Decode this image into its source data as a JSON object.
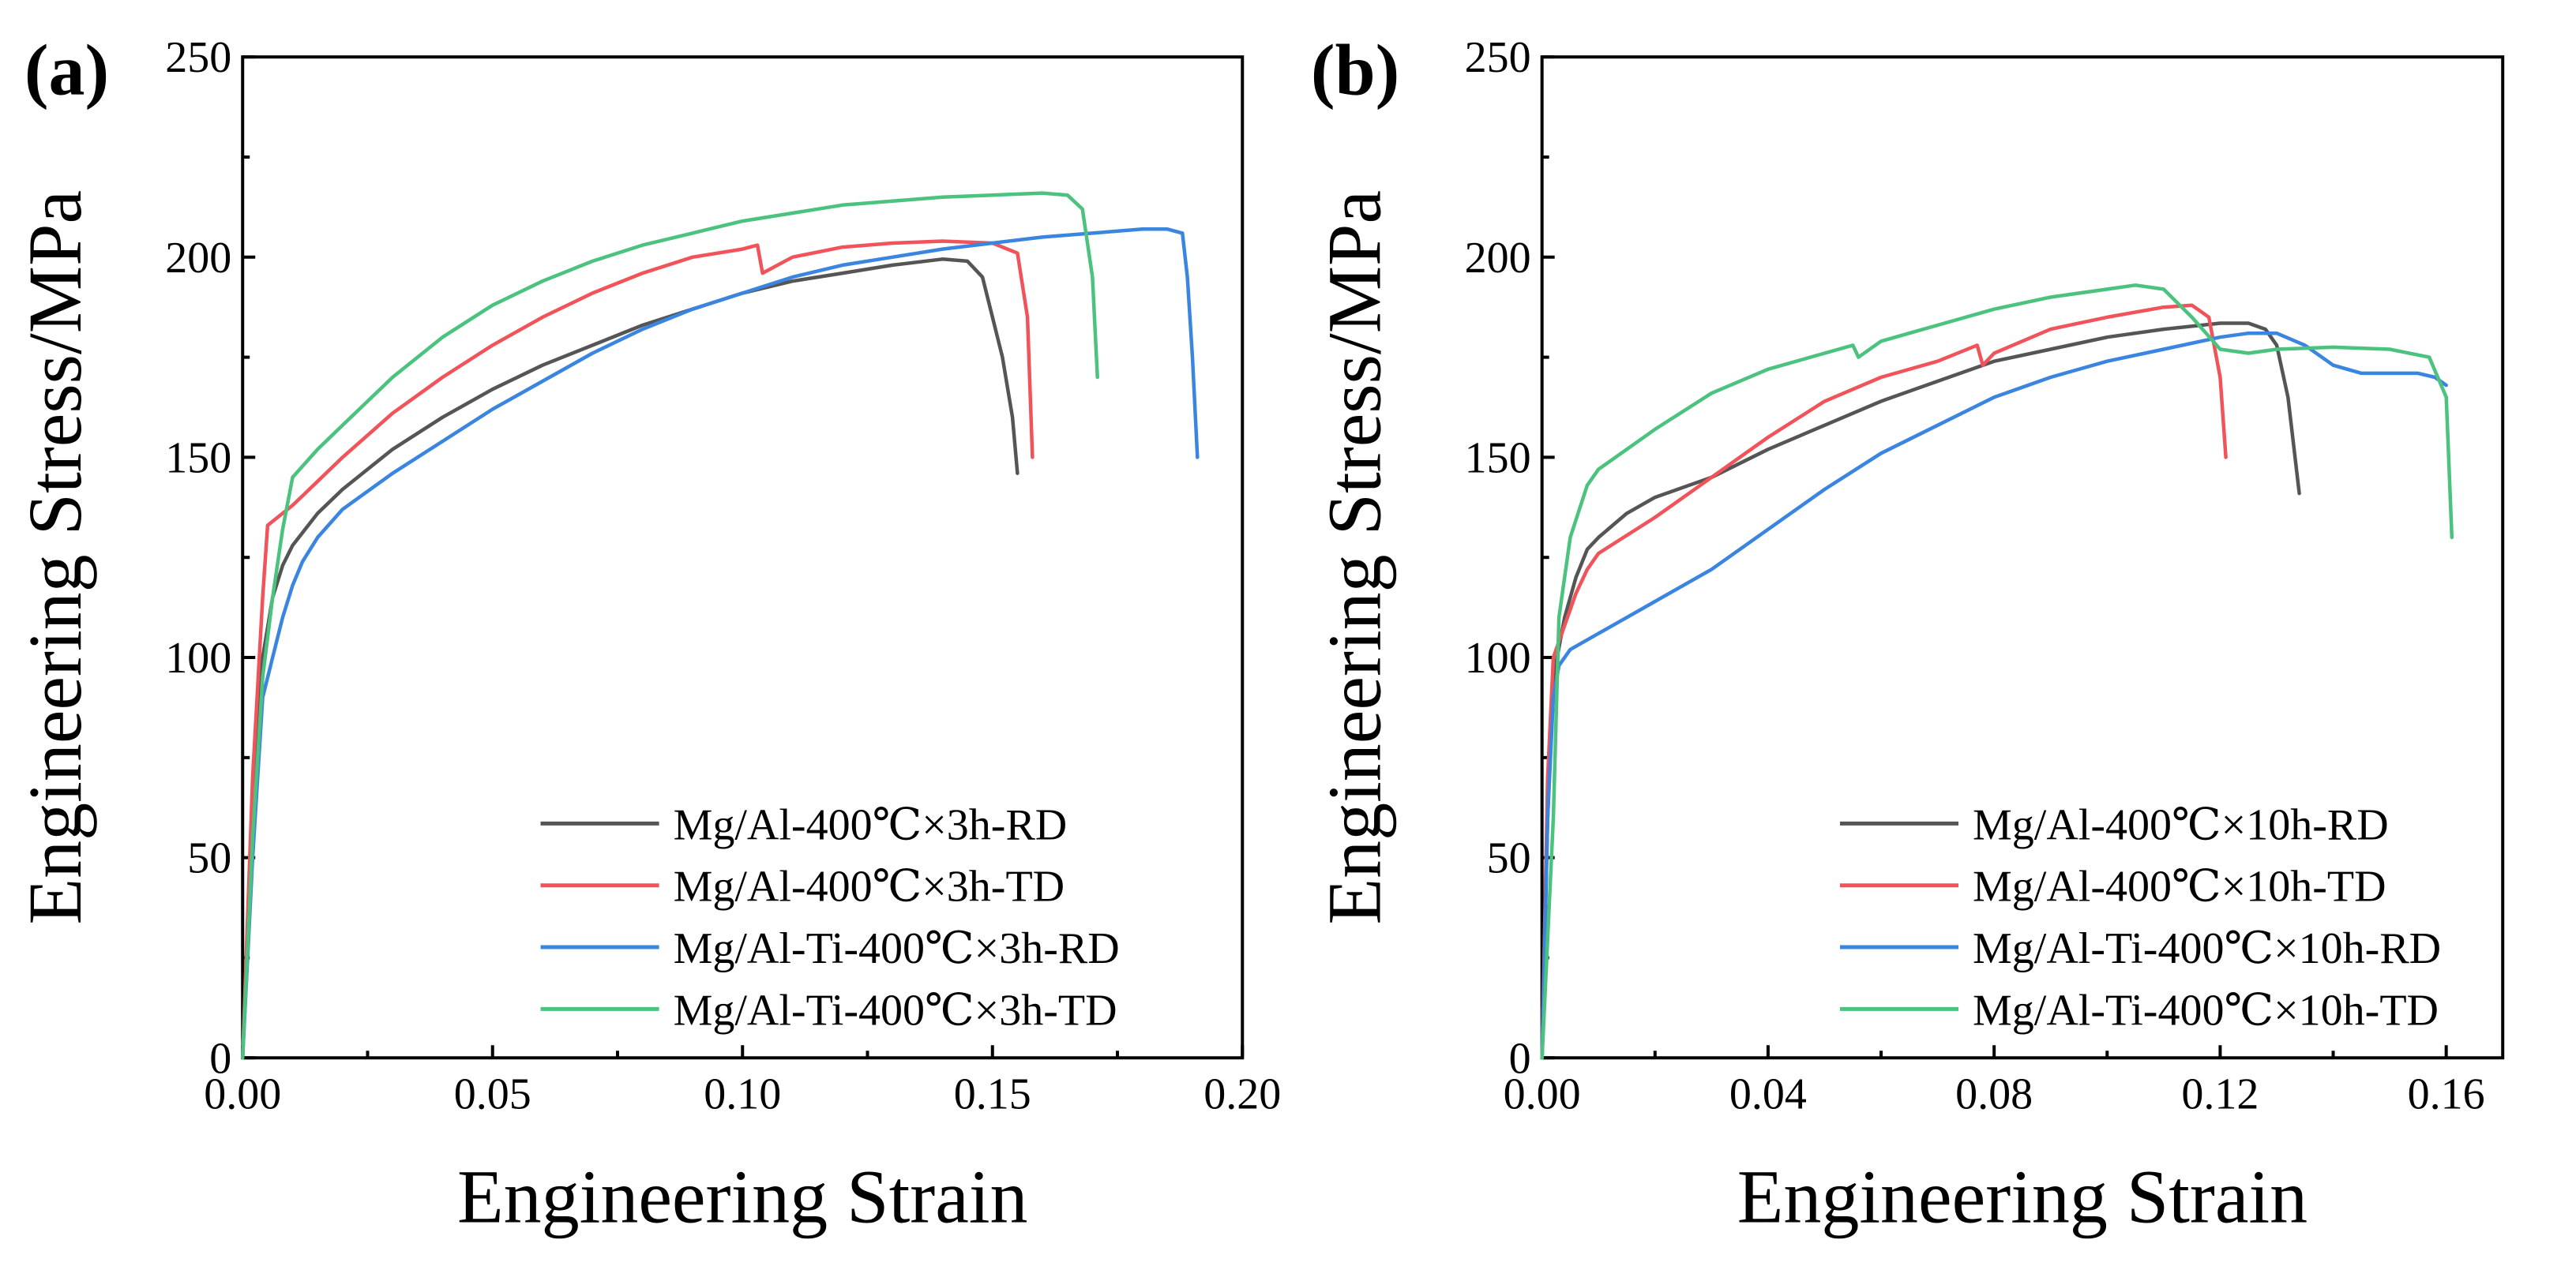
{
  "colors": {
    "axis": "#000000",
    "series": [
      "#555555",
      "#F0545A",
      "#3A85E0",
      "#4CC27F"
    ]
  },
  "chart_data": [
    {
      "panel_label": "(a)",
      "type": "line",
      "xlabel": "Engineering Strain",
      "ylabel": "Engineering Stress/MPa",
      "xlim": [
        0,
        0.2
      ],
      "ylim": [
        0,
        250
      ],
      "xticks": [
        0,
        0.05,
        0.1,
        0.15,
        0.2
      ],
      "xtick_labels": [
        "0.00",
        "0.05",
        "0.10",
        "0.15",
        "0.20"
      ],
      "yticks": [
        0,
        50,
        100,
        150,
        200,
        250
      ],
      "ytick_labels": [
        "0",
        "50",
        "100",
        "150",
        "200",
        "250"
      ],
      "legend_position": "bottom-right",
      "series": [
        {
          "name": "Mg/Al-400℃×3h-RD",
          "color": "#555555",
          "x": [
            0,
            0.002,
            0.004,
            0.006,
            0.008,
            0.01,
            0.015,
            0.02,
            0.03,
            0.04,
            0.05,
            0.06,
            0.07,
            0.08,
            0.09,
            0.1,
            0.11,
            0.12,
            0.13,
            0.14,
            0.145,
            0.148,
            0.15,
            0.152,
            0.154,
            0.155
          ],
          "y": [
            0,
            60,
            100,
            115,
            123,
            128,
            136,
            142,
            152,
            160,
            167,
            173,
            178,
            183,
            187,
            191,
            194,
            196,
            198,
            199.5,
            199,
            195,
            185,
            175,
            160,
            146
          ]
        },
        {
          "name": "Mg/Al-400℃×3h-TD",
          "color": "#F0545A",
          "x": [
            0,
            0.002,
            0.004,
            0.005,
            0.008,
            0.01,
            0.02,
            0.03,
            0.04,
            0.05,
            0.06,
            0.07,
            0.08,
            0.09,
            0.1,
            0.103,
            0.104,
            0.11,
            0.12,
            0.13,
            0.14,
            0.15,
            0.155,
            0.157,
            0.158
          ],
          "y": [
            0,
            70,
            115,
            133,
            136,
            138,
            150,
            161,
            170,
            178,
            185,
            191,
            196,
            200,
            202,
            203,
            196,
            200,
            202.5,
            203.5,
            204,
            203.5,
            201,
            185,
            150
          ]
        },
        {
          "name": "Mg/Al-Ti-400℃×3h-RD",
          "color": "#3A85E0",
          "x": [
            0,
            0.002,
            0.004,
            0.006,
            0.008,
            0.01,
            0.012,
            0.015,
            0.02,
            0.03,
            0.04,
            0.05,
            0.06,
            0.07,
            0.08,
            0.09,
            0.1,
            0.11,
            0.12,
            0.13,
            0.14,
            0.15,
            0.16,
            0.17,
            0.18,
            0.185,
            0.188,
            0.189,
            0.19,
            0.191
          ],
          "y": [
            0,
            50,
            90,
            100,
            110,
            118,
            124,
            130,
            137,
            146,
            154,
            162,
            169,
            176,
            182,
            187,
            191,
            195,
            198,
            200,
            202,
            203.5,
            205,
            206,
            207,
            207,
            206,
            195,
            175,
            150
          ]
        },
        {
          "name": "Mg/Al-Ti-400℃×3h-TD",
          "color": "#4CC27F",
          "x": [
            0,
            0.002,
            0.004,
            0.006,
            0.008,
            0.01,
            0.015,
            0.02,
            0.03,
            0.04,
            0.05,
            0.06,
            0.07,
            0.08,
            0.09,
            0.1,
            0.11,
            0.12,
            0.13,
            0.14,
            0.15,
            0.16,
            0.165,
            0.168,
            0.17,
            0.171
          ],
          "y": [
            0,
            55,
            95,
            115,
            132,
            145,
            152,
            158,
            170,
            180,
            188,
            194,
            199,
            203,
            206,
            209,
            211,
            213,
            214,
            215,
            215.5,
            216,
            215.5,
            212,
            195,
            170
          ]
        }
      ]
    },
    {
      "panel_label": "(b)",
      "type": "line",
      "xlabel": "Engineering Strain",
      "ylabel": "Engineering Stress/MPa",
      "xlim": [
        0,
        0.17
      ],
      "ylim": [
        0,
        250
      ],
      "xticks": [
        0,
        0.04,
        0.08,
        0.12,
        0.16
      ],
      "xtick_labels": [
        "0.00",
        "0.04",
        "0.08",
        "0.12",
        "0.16"
      ],
      "yticks": [
        0,
        50,
        100,
        150,
        200,
        250
      ],
      "ytick_labels": [
        "0",
        "50",
        "100",
        "150",
        "200",
        "250"
      ],
      "legend_position": "bottom-right",
      "series": [
        {
          "name": "Mg/Al-400℃×10h-RD",
          "color": "#555555",
          "x": [
            0,
            0.001,
            0.002,
            0.004,
            0.006,
            0.008,
            0.01,
            0.015,
            0.02,
            0.03,
            0.04,
            0.05,
            0.06,
            0.07,
            0.08,
            0.09,
            0.1,
            0.11,
            0.12,
            0.125,
            0.128,
            0.13,
            0.132,
            0.134
          ],
          "y": [
            0,
            60,
            95,
            110,
            120,
            127,
            130,
            136,
            140,
            145,
            152,
            158,
            164,
            169,
            174,
            177,
            180,
            182,
            183.5,
            183.5,
            182,
            178,
            165,
            141
          ]
        },
        {
          "name": "Mg/Al-400℃×10h-TD",
          "color": "#F0545A",
          "x": [
            0,
            0.001,
            0.002,
            0.004,
            0.006,
            0.008,
            0.01,
            0.02,
            0.03,
            0.04,
            0.05,
            0.06,
            0.07,
            0.077,
            0.078,
            0.08,
            0.09,
            0.1,
            0.11,
            0.115,
            0.118,
            0.12,
            0.121
          ],
          "y": [
            0,
            70,
            100,
            108,
            116,
            122,
            126,
            135,
            145,
            155,
            164,
            170,
            174,
            178,
            173,
            176,
            182,
            185,
            187.5,
            188,
            185,
            170,
            150
          ]
        },
        {
          "name": "Mg/Al-Ti-400℃×10h-RD",
          "color": "#3A85E0",
          "x": [
            0,
            0.001,
            0.002,
            0.003,
            0.005,
            0.01,
            0.02,
            0.03,
            0.04,
            0.05,
            0.06,
            0.07,
            0.08,
            0.09,
            0.1,
            0.11,
            0.12,
            0.125,
            0.13,
            0.135,
            0.14,
            0.145,
            0.15,
            0.155,
            0.158,
            0.16
          ],
          "y": [
            0,
            60,
            90,
            98,
            102,
            106,
            114,
            122,
            132,
            142,
            151,
            158,
            165,
            170,
            174,
            177,
            180,
            181,
            181,
            178,
            173,
            171,
            171,
            171,
            170,
            168
          ]
        },
        {
          "name": "Mg/Al-Ti-400℃×10h-TD",
          "color": "#4CC27F",
          "x": [
            0,
            0.002,
            0.003,
            0.005,
            0.008,
            0.01,
            0.02,
            0.03,
            0.04,
            0.05,
            0.055,
            0.056,
            0.06,
            0.07,
            0.08,
            0.09,
            0.1,
            0.105,
            0.11,
            0.115,
            0.12,
            0.125,
            0.13,
            0.14,
            0.15,
            0.157,
            0.16,
            0.161
          ],
          "y": [
            0,
            60,
            110,
            130,
            143,
            147,
            157,
            166,
            172,
            176,
            178,
            175,
            179,
            183,
            187,
            190,
            192,
            193,
            192,
            185,
            177,
            176,
            177,
            177.5,
            177,
            175,
            165,
            130
          ]
        }
      ]
    }
  ]
}
